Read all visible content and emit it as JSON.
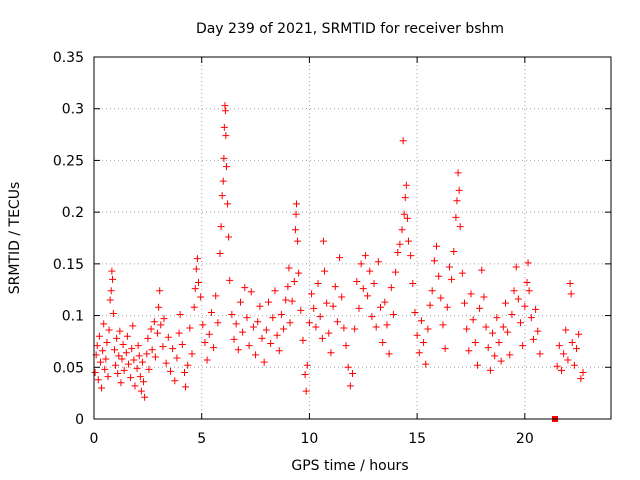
{
  "chart_data": {
    "type": "scatter",
    "title": "Day 239 of 2021, SRMTID for receiver bshm",
    "xlabel": "GPS time / hours",
    "ylabel": "SRMTID / TECUs",
    "xlim": [
      0,
      24
    ],
    "ylim": [
      0,
      0.35
    ],
    "grid": true,
    "marker": "+",
    "series_color": "#ff0000",
    "x_ticks": [
      {
        "value": 0,
        "label": "0"
      },
      {
        "value": 5,
        "label": "5"
      },
      {
        "value": 10,
        "label": "10"
      },
      {
        "value": 15,
        "label": "15"
      },
      {
        "value": 20,
        "label": "20"
      }
    ],
    "y_ticks": [
      {
        "value": 0,
        "label": "0"
      },
      {
        "value": 0.05,
        "label": "0.05"
      },
      {
        "value": 0.1,
        "label": "0.1"
      },
      {
        "value": 0.15,
        "label": "0.15"
      },
      {
        "value": 0.2,
        "label": "0.2"
      },
      {
        "value": 0.25,
        "label": "0.25"
      },
      {
        "value": 0.3,
        "label": "0.3"
      },
      {
        "value": 0.35,
        "label": "0.35"
      }
    ],
    "series": [
      {
        "name": "SRMTID",
        "points": [
          [
            0.05,
            0.045
          ],
          [
            0.1,
            0.062
          ],
          [
            0.15,
            0.071
          ],
          [
            0.2,
            0.038
          ],
          [
            0.25,
            0.08
          ],
          [
            0.3,
            0.055
          ],
          [
            0.35,
            0.03
          ],
          [
            0.4,
            0.066
          ],
          [
            0.45,
            0.092
          ],
          [
            0.5,
            0.048
          ],
          [
            0.55,
            0.058
          ],
          [
            0.6,
            0.074
          ],
          [
            0.65,
            0.041
          ],
          [
            0.7,
            0.086
          ],
          [
            0.75,
            0.115
          ],
          [
            0.8,
            0.124
          ],
          [
            0.83,
            0.143
          ],
          [
            0.86,
            0.135
          ],
          [
            0.9,
            0.102
          ],
          [
            0.95,
            0.067
          ],
          [
            1.0,
            0.052
          ],
          [
            1.05,
            0.078
          ],
          [
            1.1,
            0.044
          ],
          [
            1.15,
            0.061
          ],
          [
            1.2,
            0.085
          ],
          [
            1.25,
            0.035
          ],
          [
            1.3,
            0.058
          ],
          [
            1.35,
            0.072
          ],
          [
            1.4,
            0.047
          ],
          [
            1.5,
            0.064
          ],
          [
            1.55,
            0.08
          ],
          [
            1.6,
            0.053
          ],
          [
            1.7,
            0.04
          ],
          [
            1.75,
            0.068
          ],
          [
            1.8,
            0.09
          ],
          [
            1.85,
            0.057
          ],
          [
            1.9,
            0.032
          ],
          [
            2.0,
            0.049
          ],
          [
            2.05,
            0.071
          ],
          [
            2.1,
            0.061
          ],
          [
            2.15,
            0.041
          ],
          [
            2.2,
            0.027
          ],
          [
            2.25,
            0.055
          ],
          [
            2.3,
            0.036
          ],
          [
            2.35,
            0.021
          ],
          [
            2.45,
            0.063
          ],
          [
            2.5,
            0.078
          ],
          [
            2.55,
            0.048
          ],
          [
            2.65,
            0.087
          ],
          [
            2.7,
            0.067
          ],
          [
            2.8,
            0.094
          ],
          [
            2.85,
            0.06
          ],
          [
            2.95,
            0.083
          ],
          [
            3.0,
            0.108
          ],
          [
            3.05,
            0.124
          ],
          [
            3.1,
            0.091
          ],
          [
            3.2,
            0.07
          ],
          [
            3.25,
            0.097
          ],
          [
            3.35,
            0.054
          ],
          [
            3.45,
            0.079
          ],
          [
            3.55,
            0.046
          ],
          [
            3.65,
            0.068
          ],
          [
            3.75,
            0.037
          ],
          [
            3.85,
            0.059
          ],
          [
            3.95,
            0.083
          ],
          [
            4.0,
            0.101
          ],
          [
            4.1,
            0.072
          ],
          [
            4.2,
            0.045
          ],
          [
            4.25,
            0.031
          ],
          [
            4.35,
            0.052
          ],
          [
            4.45,
            0.088
          ],
          [
            4.55,
            0.063
          ],
          [
            4.65,
            0.108
          ],
          [
            4.7,
            0.126
          ],
          [
            4.75,
            0.145
          ],
          [
            4.8,
            0.155
          ],
          [
            4.85,
            0.132
          ],
          [
            4.95,
            0.118
          ],
          [
            5.05,
            0.091
          ],
          [
            5.15,
            0.074
          ],
          [
            5.25,
            0.057
          ],
          [
            5.35,
            0.082
          ],
          [
            5.45,
            0.103
          ],
          [
            5.55,
            0.069
          ],
          [
            5.65,
            0.119
          ],
          [
            5.75,
            0.093
          ],
          [
            5.85,
            0.16
          ],
          [
            5.9,
            0.186
          ],
          [
            5.95,
            0.216
          ],
          [
            6.0,
            0.23
          ],
          [
            6.03,
            0.252
          ],
          [
            6.05,
            0.282
          ],
          [
            6.08,
            0.303
          ],
          [
            6.1,
            0.298
          ],
          [
            6.12,
            0.274
          ],
          [
            6.15,
            0.244
          ],
          [
            6.2,
            0.208
          ],
          [
            6.25,
            0.176
          ],
          [
            6.3,
            0.134
          ],
          [
            6.4,
            0.101
          ],
          [
            6.5,
            0.077
          ],
          [
            6.6,
            0.092
          ],
          [
            6.7,
            0.067
          ],
          [
            6.8,
            0.113
          ],
          [
            6.9,
            0.084
          ],
          [
            7.0,
            0.127
          ],
          [
            7.1,
            0.098
          ],
          [
            7.2,
            0.071
          ],
          [
            7.3,
            0.123
          ],
          [
            7.4,
            0.089
          ],
          [
            7.5,
            0.062
          ],
          [
            7.6,
            0.094
          ],
          [
            7.7,
            0.109
          ],
          [
            7.8,
            0.078
          ],
          [
            7.9,
            0.055
          ],
          [
            8.0,
            0.086
          ],
          [
            8.1,
            0.113
          ],
          [
            8.2,
            0.073
          ],
          [
            8.3,
            0.098
          ],
          [
            8.4,
            0.124
          ],
          [
            8.5,
            0.081
          ],
          [
            8.6,
            0.066
          ],
          [
            8.7,
            0.101
          ],
          [
            8.8,
            0.087
          ],
          [
            8.9,
            0.115
          ],
          [
            9.0,
            0.128
          ],
          [
            9.05,
            0.146
          ],
          [
            9.1,
            0.093
          ],
          [
            9.2,
            0.114
          ],
          [
            9.3,
            0.133
          ],
          [
            9.35,
            0.183
          ],
          [
            9.38,
            0.198
          ],
          [
            9.4,
            0.208
          ],
          [
            9.45,
            0.172
          ],
          [
            9.5,
            0.141
          ],
          [
            9.6,
            0.105
          ],
          [
            9.7,
            0.076
          ],
          [
            9.8,
            0.043
          ],
          [
            9.85,
            0.027
          ],
          [
            9.9,
            0.052
          ],
          [
            10.0,
            0.093
          ],
          [
            10.1,
            0.121
          ],
          [
            10.2,
            0.107
          ],
          [
            10.3,
            0.089
          ],
          [
            10.4,
            0.131
          ],
          [
            10.5,
            0.099
          ],
          [
            10.6,
            0.078
          ],
          [
            10.65,
            0.172
          ],
          [
            10.7,
            0.143
          ],
          [
            10.8,
            0.112
          ],
          [
            10.9,
            0.083
          ],
          [
            11.0,
            0.064
          ],
          [
            11.1,
            0.109
          ],
          [
            11.2,
            0.128
          ],
          [
            11.3,
            0.094
          ],
          [
            11.4,
            0.156
          ],
          [
            11.5,
            0.118
          ],
          [
            11.6,
            0.088
          ],
          [
            11.7,
            0.071
          ],
          [
            11.8,
            0.05
          ],
          [
            11.9,
            0.032
          ],
          [
            12.0,
            0.044
          ],
          [
            12.1,
            0.087
          ],
          [
            12.2,
            0.133
          ],
          [
            12.3,
            0.107
          ],
          [
            12.4,
            0.15
          ],
          [
            12.5,
            0.126
          ],
          [
            12.6,
            0.158
          ],
          [
            12.7,
            0.119
          ],
          [
            12.8,
            0.143
          ],
          [
            12.9,
            0.099
          ],
          [
            13.0,
            0.131
          ],
          [
            13.1,
            0.089
          ],
          [
            13.2,
            0.152
          ],
          [
            13.3,
            0.108
          ],
          [
            13.4,
            0.074
          ],
          [
            13.5,
            0.113
          ],
          [
            13.6,
            0.091
          ],
          [
            13.7,
            0.063
          ],
          [
            13.8,
            0.127
          ],
          [
            13.9,
            0.101
          ],
          [
            14.0,
            0.142
          ],
          [
            14.1,
            0.161
          ],
          [
            14.2,
            0.169
          ],
          [
            14.3,
            0.183
          ],
          [
            14.35,
            0.269
          ],
          [
            14.4,
            0.198
          ],
          [
            14.45,
            0.214
          ],
          [
            14.5,
            0.226
          ],
          [
            14.55,
            0.194
          ],
          [
            14.6,
            0.172
          ],
          [
            14.7,
            0.158
          ],
          [
            14.8,
            0.131
          ],
          [
            14.9,
            0.103
          ],
          [
            15.0,
            0.081
          ],
          [
            15.1,
            0.064
          ],
          [
            15.2,
            0.095
          ],
          [
            15.3,
            0.074
          ],
          [
            15.4,
            0.053
          ],
          [
            15.5,
            0.087
          ],
          [
            15.6,
            0.11
          ],
          [
            15.7,
            0.124
          ],
          [
            15.8,
            0.153
          ],
          [
            15.9,
            0.167
          ],
          [
            16.0,
            0.138
          ],
          [
            16.1,
            0.117
          ],
          [
            16.2,
            0.091
          ],
          [
            16.3,
            0.068
          ],
          [
            16.4,
            0.108
          ],
          [
            16.5,
            0.147
          ],
          [
            16.6,
            0.135
          ],
          [
            16.7,
            0.162
          ],
          [
            16.8,
            0.195
          ],
          [
            16.85,
            0.211
          ],
          [
            16.9,
            0.238
          ],
          [
            16.95,
            0.221
          ],
          [
            17.0,
            0.186
          ],
          [
            17.1,
            0.141
          ],
          [
            17.2,
            0.112
          ],
          [
            17.3,
            0.087
          ],
          [
            17.4,
            0.066
          ],
          [
            17.5,
            0.121
          ],
          [
            17.6,
            0.096
          ],
          [
            17.7,
            0.074
          ],
          [
            17.8,
            0.052
          ],
          [
            17.9,
            0.107
          ],
          [
            18.0,
            0.144
          ],
          [
            18.1,
            0.118
          ],
          [
            18.2,
            0.089
          ],
          [
            18.3,
            0.069
          ],
          [
            18.4,
            0.047
          ],
          [
            18.5,
            0.083
          ],
          [
            18.6,
            0.061
          ],
          [
            18.7,
            0.098
          ],
          [
            18.8,
            0.074
          ],
          [
            18.9,
            0.056
          ],
          [
            19.0,
            0.089
          ],
          [
            19.1,
            0.112
          ],
          [
            19.2,
            0.084
          ],
          [
            19.3,
            0.062
          ],
          [
            19.4,
            0.101
          ],
          [
            19.5,
            0.124
          ],
          [
            19.6,
            0.147
          ],
          [
            19.7,
            0.116
          ],
          [
            19.8,
            0.093
          ],
          [
            19.9,
            0.071
          ],
          [
            20.0,
            0.109
          ],
          [
            20.1,
            0.132
          ],
          [
            20.15,
            0.151
          ],
          [
            20.2,
            0.124
          ],
          [
            20.3,
            0.098
          ],
          [
            20.4,
            0.077
          ],
          [
            20.5,
            0.106
          ],
          [
            20.6,
            0.085
          ],
          [
            20.7,
            0.063
          ],
          [
            21.4,
            0.0
          ],
          [
            21.5,
            0.051
          ],
          [
            21.6,
            0.071
          ],
          [
            21.7,
            0.047
          ],
          [
            21.8,
            0.063
          ],
          [
            21.9,
            0.086
          ],
          [
            22.0,
            0.057
          ],
          [
            22.1,
            0.131
          ],
          [
            22.15,
            0.121
          ],
          [
            22.2,
            0.074
          ],
          [
            22.3,
            0.052
          ],
          [
            22.4,
            0.068
          ],
          [
            22.5,
            0.082
          ],
          [
            22.6,
            0.039
          ],
          [
            22.7,
            0.045
          ]
        ]
      }
    ]
  }
}
